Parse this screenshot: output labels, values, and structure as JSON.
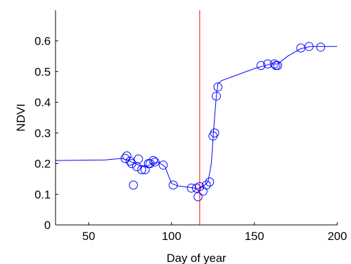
{
  "chart_data": {
    "type": "line",
    "title": "",
    "xlabel": "Day of year",
    "ylabel": "NDVI",
    "xlim": [
      30,
      200
    ],
    "ylim": [
      0,
      0.7
    ],
    "xticks": [
      50,
      100,
      150,
      200
    ],
    "yticks": [
      0,
      0.1,
      0.2,
      0.3,
      0.4,
      0.5,
      0.6
    ],
    "grid": false,
    "legend": "none",
    "colors": {
      "line": "#0000ff",
      "marker": "#0000ff",
      "reference": "#ff0000",
      "axes": "#000000"
    },
    "reference_line_x": 117,
    "series": [
      {
        "role": "smoothed",
        "style": "line",
        "x": [
          30,
          60,
          70,
          73,
          76,
          79,
          82,
          85,
          88,
          92,
          96,
          100,
          104,
          110,
          114,
          116,
          118,
          120,
          122,
          124,
          125,
          126,
          127,
          128,
          130,
          140,
          150,
          160,
          164,
          170,
          178,
          184,
          190,
          200
        ],
        "y": [
          0.21,
          0.212,
          0.217,
          0.212,
          0.205,
          0.198,
          0.19,
          0.19,
          0.2,
          0.205,
          0.19,
          0.135,
          0.127,
          0.123,
          0.12,
          0.118,
          0.125,
          0.13,
          0.14,
          0.2,
          0.28,
          0.35,
          0.42,
          0.46,
          0.47,
          0.49,
          0.51,
          0.525,
          0.525,
          0.55,
          0.575,
          0.582,
          0.582,
          0.582
        ]
      },
      {
        "role": "observations",
        "style": "markers",
        "x": [
          72,
          73,
          75,
          76,
          77,
          79,
          80,
          82,
          84,
          86,
          87,
          89,
          90,
          95,
          101,
          112,
          115,
          116,
          117,
          119,
          121,
          123,
          125,
          126,
          127,
          128,
          154,
          158,
          162,
          163,
          164,
          178,
          183,
          190
        ],
        "y": [
          0.217,
          0.225,
          0.208,
          0.2,
          0.13,
          0.19,
          0.215,
          0.18,
          0.18,
          0.2,
          0.2,
          0.21,
          0.205,
          0.195,
          0.13,
          0.12,
          0.12,
          0.092,
          0.125,
          0.11,
          0.13,
          0.14,
          0.29,
          0.3,
          0.42,
          0.45,
          0.52,
          0.525,
          0.525,
          0.52,
          0.52,
          0.577,
          0.582,
          0.58
        ]
      }
    ]
  }
}
